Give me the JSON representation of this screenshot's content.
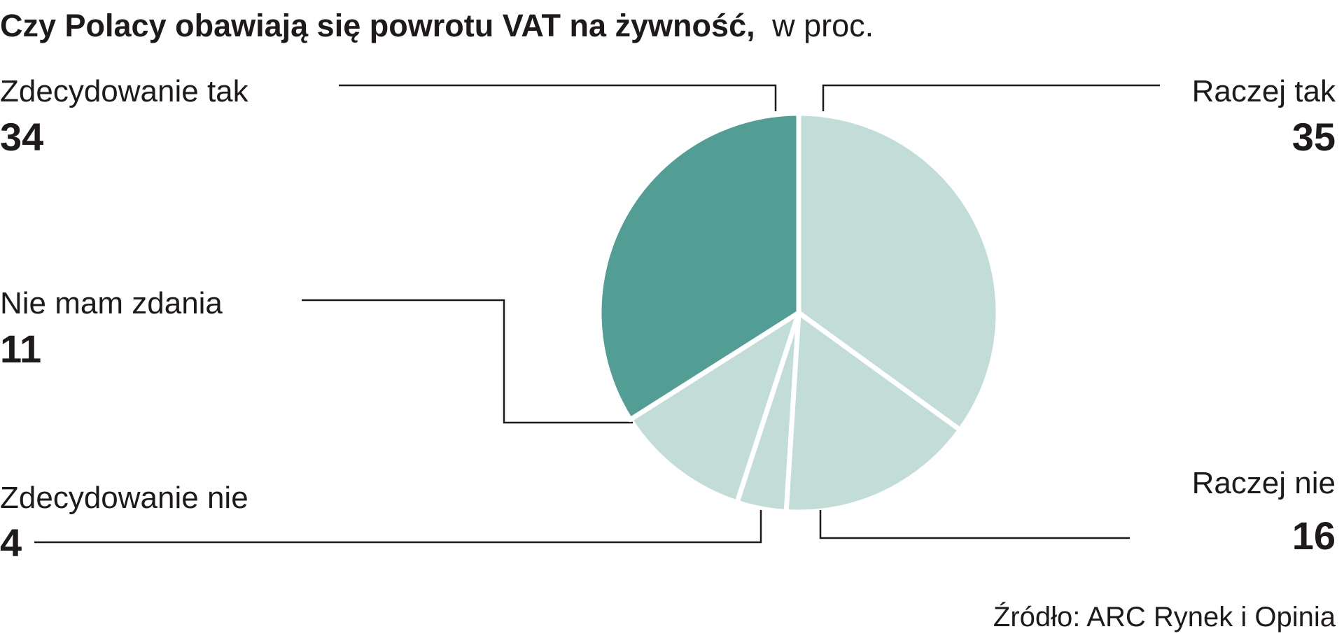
{
  "chart_data": {
    "type": "pie",
    "title": "Czy Polacy obawiają się powrotu VAT na żywność,",
    "subtitle": "w proc.",
    "categories": [
      "Raczej tak",
      "Raczej nie",
      "Zdecydowanie nie",
      "Nie mam zdania",
      "Zdecydowanie tak"
    ],
    "values": [
      35,
      16,
      4,
      11,
      34
    ],
    "colors": [
      "#c2dcd7",
      "#c2dcd7",
      "#c2dcd7",
      "#c2dcd7",
      "#529e94"
    ],
    "source": "Źródło: ARC Rynek i Opinia"
  }
}
